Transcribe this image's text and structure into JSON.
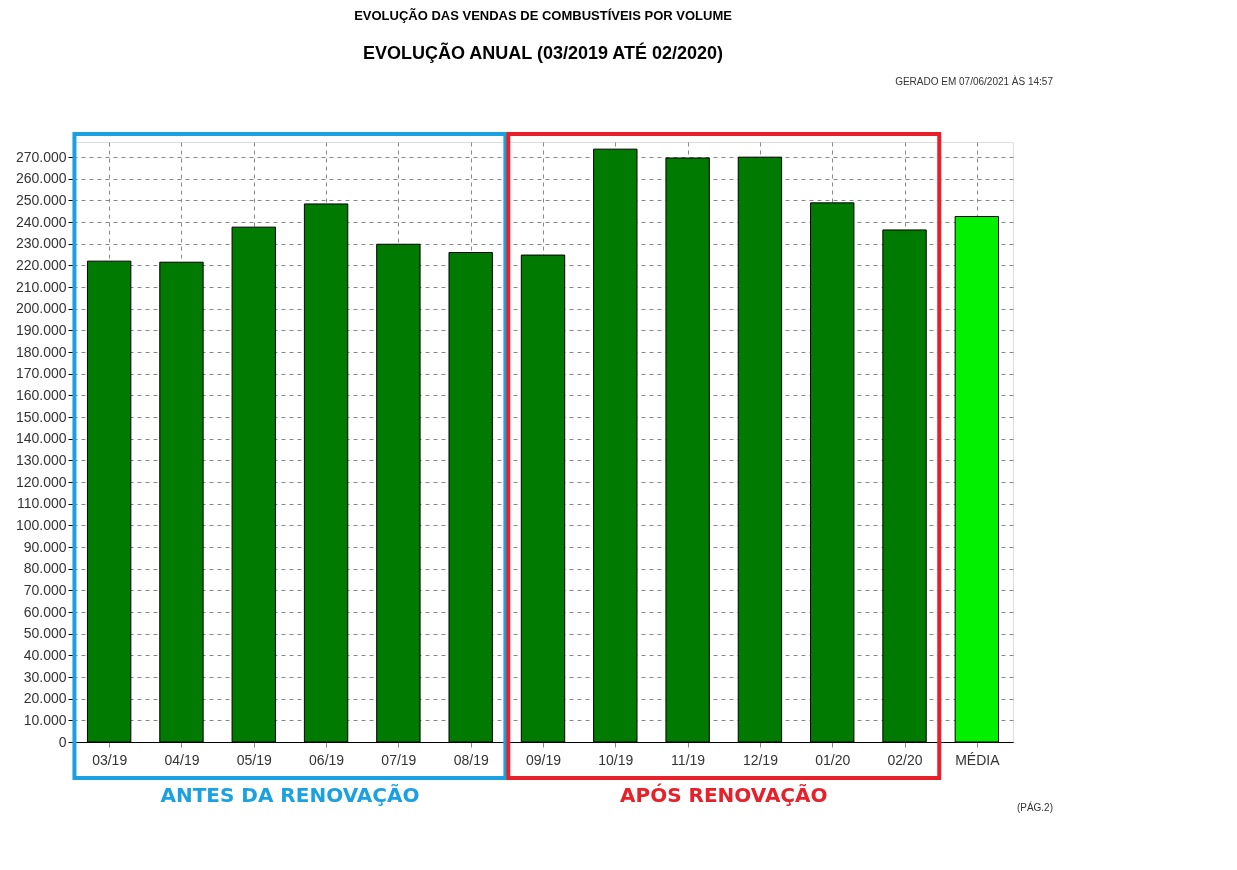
{
  "chart_data": {
    "type": "bar",
    "title": "EVOLUÇÃO DAS VENDAS DE COMBUSTÍVEIS POR VOLUME",
    "subtitle": "EVOLUÇÃO ANUAL (03/2019 ATÉ 02/2020)",
    "annotations": [
      "GERADO EM 07/06/2021 ÀS 14:57",
      "(PÁG.2)",
      "ANTES DA RENOVAÇÃO",
      "APÓS RENOVAÇÃO"
    ],
    "categories": [
      "03/19",
      "04/19",
      "05/19",
      "06/19",
      "07/19",
      "08/19",
      "09/19",
      "10/19",
      "11/19",
      "12/19",
      "01/20",
      "02/20",
      "MÉDIA"
    ],
    "values": [
      222000,
      221500,
      237700,
      248400,
      229800,
      226000,
      224800,
      273700,
      269600,
      270000,
      248900,
      236400,
      242600
    ],
    "colors": [
      "#007a00",
      "#007a00",
      "#007a00",
      "#007a00",
      "#007a00",
      "#007a00",
      "#007a00",
      "#007a00",
      "#007a00",
      "#007a00",
      "#007a00",
      "#007a00",
      "#00f000"
    ],
    "ylim": [
      0,
      277000
    ],
    "yticks": [
      0,
      {
        "value": 10000,
        "label": "10.000"
      },
      {
        "value": 20000,
        "label": "20.000"
      },
      {
        "value": 30000,
        "label": "30.000"
      },
      {
        "value": 40000,
        "label": "40.000"
      },
      {
        "value": 50000,
        "label": "50.000"
      },
      {
        "value": 60000,
        "label": "60.000"
      },
      {
        "value": 70000,
        "label": "70.000"
      },
      {
        "value": 80000,
        "label": "80.000"
      },
      {
        "value": 90000,
        "label": "90.000"
      },
      {
        "value": 100000,
        "label": "100.000"
      },
      {
        "value": 110000,
        "label": "110.000"
      },
      {
        "value": 120000,
        "label": "120.000"
      },
      {
        "value": 130000,
        "label": "130.000"
      },
      {
        "value": 140000,
        "label": "140.000"
      },
      {
        "value": 150000,
        "label": "150.000"
      },
      {
        "value": 160000,
        "label": "160.000"
      },
      {
        "value": 170000,
        "label": "170.000"
      },
      {
        "value": 180000,
        "label": "180.000"
      },
      {
        "value": 190000,
        "label": "190.000"
      },
      {
        "value": 200000,
        "label": "200.000"
      },
      {
        "value": 210000,
        "label": "210.000"
      },
      {
        "value": 220000,
        "label": "220.000"
      },
      {
        "value": 230000,
        "label": "230.000"
      },
      {
        "value": 240000,
        "label": "240.000"
      },
      {
        "value": 250000,
        "label": "250.000"
      },
      {
        "value": 260000,
        "label": "260.000"
      },
      {
        "value": 270000,
        "label": "270.000"
      }
    ],
    "grid": true
  }
}
